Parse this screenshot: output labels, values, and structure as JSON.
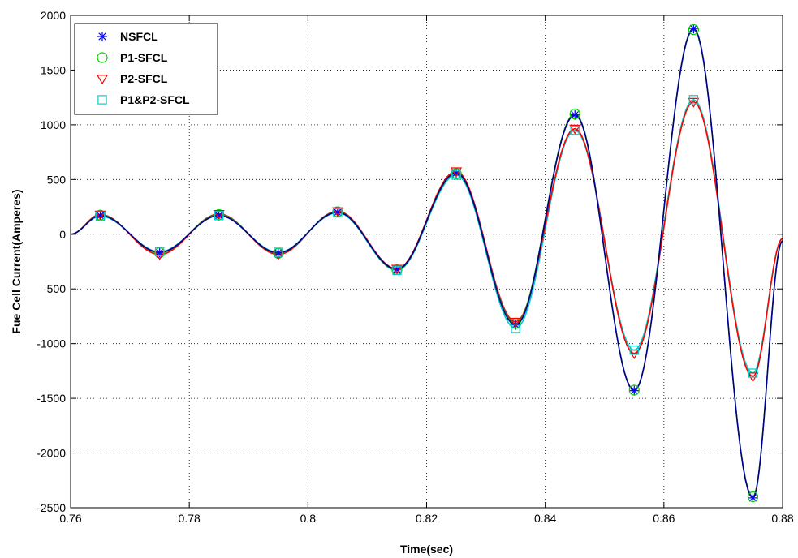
{
  "chart_data": {
    "type": "line",
    "title": "",
    "xlabel": "Time(sec)",
    "ylabel": "Fue Cell Current(Amperes)",
    "xlim": [
      0.76,
      0.88
    ],
    "ylim": [
      -2500,
      2000
    ],
    "xticks": [
      "0.76",
      "0.78",
      "0.8",
      "0.82",
      "0.84",
      "0.86",
      "0.88"
    ],
    "yticks": [
      "2000",
      "1500",
      "1000",
      "500",
      "0",
      "-500",
      "-1000",
      "-1500",
      "-2000",
      "-2500"
    ],
    "grid": true,
    "legend_position": "top-left",
    "x": [
      0.76,
      0.765,
      0.775,
      0.785,
      0.795,
      0.805,
      0.815,
      0.825,
      0.835,
      0.845,
      0.855,
      0.865,
      0.875,
      0.88
    ],
    "series": [
      {
        "name": "NSFCL",
        "color": "#0000ff",
        "marker": "asterisk",
        "values": [
          0,
          170,
          -165,
          170,
          -170,
          200,
          -320,
          560,
          -830,
          1090,
          -1430,
          1880,
          -2410,
          -60
        ]
      },
      {
        "name": "P1-SFCL",
        "color": "#00cc00",
        "marker": "circle",
        "values": [
          0,
          175,
          -170,
          180,
          -175,
          205,
          -325,
          555,
          -815,
          1100,
          -1425,
          1870,
          -2400,
          -60
        ]
      },
      {
        "name": "P2-SFCL",
        "color": "#ff0000",
        "marker": "triangle-down",
        "values": [
          0,
          180,
          -185,
          185,
          -185,
          210,
          -315,
          575,
          -800,
          965,
          -1090,
          1210,
          -1300,
          -40
        ]
      },
      {
        "name": "P1&P2-SFCL",
        "color": "#00cccc",
        "marker": "square",
        "values": [
          0,
          165,
          -160,
          170,
          -165,
          195,
          -330,
          540,
          -860,
          950,
          -1060,
          1230,
          -1270,
          -40
        ]
      }
    ]
  }
}
